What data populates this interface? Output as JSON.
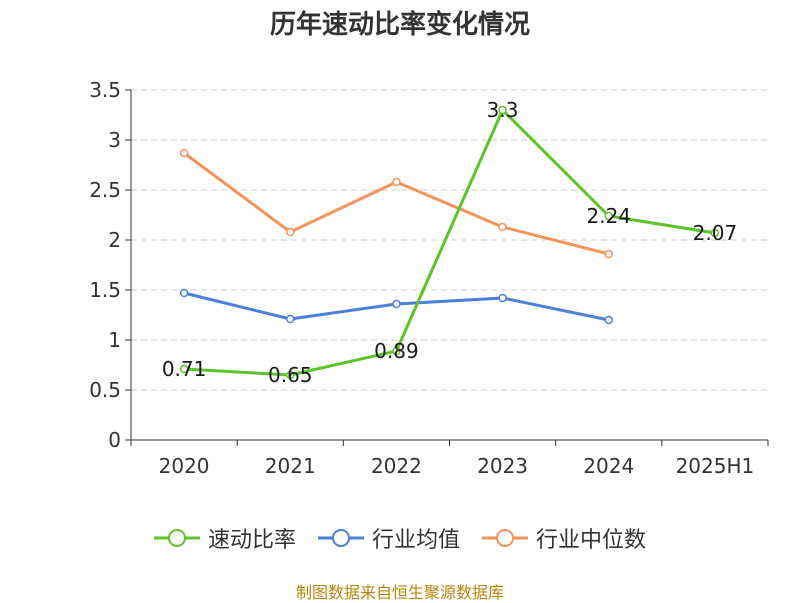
{
  "chart_data": {
    "type": "line",
    "title": "历年速动比率变化情况",
    "categories": [
      "2020",
      "2021",
      "2022",
      "2023",
      "2024",
      "2025H1"
    ],
    "ylim": [
      0,
      3.5
    ],
    "yticks": [
      "0",
      "0.5",
      "1",
      "1.5",
      "2",
      "2.5",
      "3",
      "3.5"
    ],
    "grid": true,
    "legend_position": "bottom",
    "series": [
      {
        "name": "速动比率",
        "color": "#5ec22a",
        "values": [
          0.71,
          0.65,
          0.89,
          3.3,
          2.24,
          2.07
        ],
        "labels": [
          "0.71",
          "0.65",
          "0.89",
          "3.3",
          "2.24",
          "2.07"
        ]
      },
      {
        "name": "行业均值",
        "color": "#4a7fdc",
        "values": [
          1.47,
          1.21,
          1.36,
          1.42,
          1.2,
          null
        ]
      },
      {
        "name": "行业中位数",
        "color": "#f5935b",
        "values": [
          2.87,
          2.08,
          2.58,
          2.13,
          1.86,
          null
        ]
      }
    ]
  },
  "source_note": "制图数据来自恒生聚源数据库"
}
